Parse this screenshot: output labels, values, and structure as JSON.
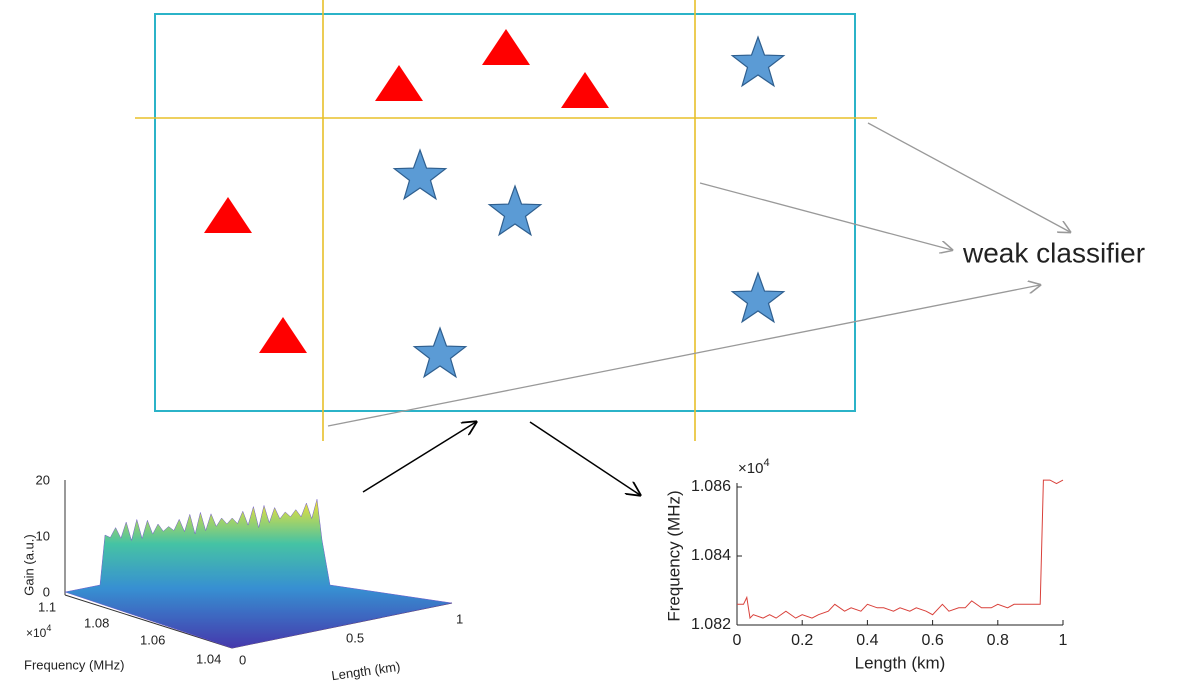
{
  "classifier_label": "weak classifier",
  "surface_plot": {
    "gain_axis": {
      "label": "Gain (a.u.)",
      "ticks": [
        "20",
        "10",
        "0"
      ]
    },
    "frequency_axis": {
      "label": "Frequency (MHz)",
      "ticks": [
        "1.1",
        "1.08",
        "1.06",
        "1.04"
      ],
      "multiplier": {
        "base": "×10",
        "exponent": "4"
      }
    },
    "length_axis": {
      "label": "Length (km)",
      "ticks": [
        "0",
        "0.5",
        "1"
      ]
    }
  },
  "line_chart": {
    "type": "line",
    "xlabel": "Length (km)",
    "ylabel": "Frequency (MHz)",
    "y_multiplier": {
      "base": "×10",
      "exponent": "4"
    },
    "x": [
      0,
      0.02,
      0.03,
      0.04,
      0.05,
      0.08,
      0.1,
      0.12,
      0.15,
      0.18,
      0.2,
      0.23,
      0.25,
      0.28,
      0.3,
      0.33,
      0.35,
      0.38,
      0.4,
      0.43,
      0.45,
      0.48,
      0.5,
      0.53,
      0.55,
      0.58,
      0.6,
      0.63,
      0.65,
      0.68,
      0.7,
      0.72,
      0.75,
      0.78,
      0.8,
      0.83,
      0.85,
      0.88,
      0.9,
      0.92,
      0.93,
      0.94,
      0.96,
      0.98,
      1.0
    ],
    "values": [
      1.0826,
      1.0826,
      1.0828,
      1.0822,
      1.0823,
      1.0822,
      1.0823,
      1.0822,
      1.0824,
      1.0822,
      1.0823,
      1.0822,
      1.0823,
      1.0824,
      1.0826,
      1.0824,
      1.0825,
      1.0824,
      1.0826,
      1.0825,
      1.0825,
      1.0824,
      1.0825,
      1.0824,
      1.0825,
      1.0824,
      1.0823,
      1.0826,
      1.0824,
      1.0825,
      1.0825,
      1.0827,
      1.0825,
      1.0825,
      1.0826,
      1.0825,
      1.0826,
      1.0826,
      1.0826,
      1.0826,
      1.0826,
      1.0862,
      1.0862,
      1.0861,
      1.0862
    ],
    "color": "#d9403a",
    "xlim": [
      0,
      1
    ],
    "ylim": [
      1.082,
      1.086
    ],
    "xticks": [
      0,
      0.2,
      0.4,
      0.6,
      0.8,
      1
    ],
    "yticks": [
      1.082,
      1.084,
      1.086
    ]
  }
}
